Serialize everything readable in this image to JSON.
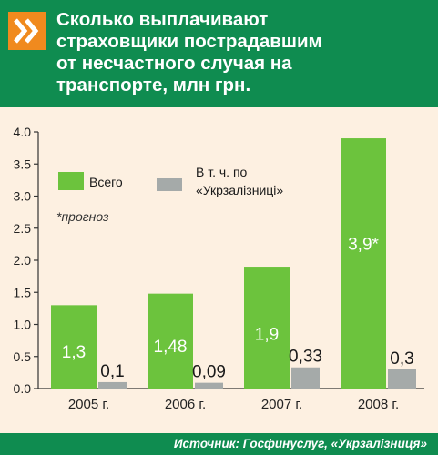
{
  "header": {
    "title_lines": [
      "Сколько выплачивают",
      "страховщики пострадавшим",
      "от несчастного случая на",
      "транспорте, млн грн."
    ]
  },
  "footer": {
    "source": "Источник: Госфинуслуг, «Укрзалізниця»"
  },
  "colors": {
    "header_bg": "#0f8c50",
    "icon_bg": "#f08a1e",
    "total": "#6cc33d",
    "ukrz": "#a5aaa9",
    "background": "#fdf0e1"
  },
  "icons": {
    "header": "double-chevron-right-icon"
  },
  "chart_data": {
    "type": "bar",
    "categories": [
      "2005 г.",
      "2006 г.",
      "2007 г.",
      "2008 г."
    ],
    "series": [
      {
        "name": "Всего",
        "values": [
          1.3,
          1.48,
          1.9,
          3.9
        ],
        "labels": [
          "1,3",
          "1,48",
          "1,9",
          "3,9*"
        ]
      },
      {
        "name": "В т. ч. по «Укрзалізниці»",
        "values": [
          0.1,
          0.09,
          0.33,
          0.3
        ],
        "labels": [
          "0,1",
          "0,09",
          "0,33",
          "0,3"
        ]
      }
    ],
    "ylim": [
      0,
      4.0
    ],
    "yticks": [
      "0.0",
      "0.5",
      "1.0",
      "1.5",
      "2.0",
      "2.5",
      "3.0",
      "3.5",
      "4.0"
    ],
    "legend": {
      "placement": "top-left",
      "total_label": "Всего",
      "ukrz_label_line1": "В т. ч. по",
      "ukrz_label_line2": "«Укрзалізниці»"
    },
    "note": "*прогноз",
    "grid": false
  }
}
